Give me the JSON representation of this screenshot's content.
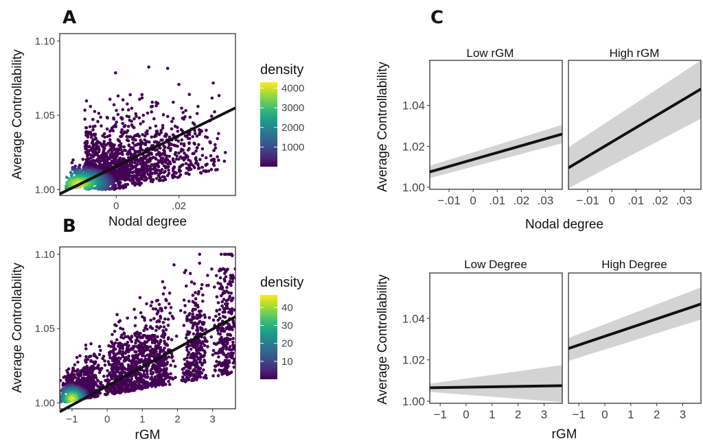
{
  "panels": {
    "a": "A",
    "b": "B",
    "c": "C"
  },
  "colors": {
    "viridis": [
      "#440154",
      "#482878",
      "#3e4989",
      "#31688e",
      "#26828e",
      "#1f9e89",
      "#35b779",
      "#6ece58",
      "#b5de2b",
      "#fde725"
    ],
    "point_low": "#46146d",
    "fit_line": "#111111",
    "ribbon": "#d3d3d3"
  },
  "chart_data": [
    {
      "id": "A",
      "type": "scatter",
      "xlabel": "Nodal degree",
      "ylabel": "Average Controllability",
      "x_ticks": [
        {
          "value": 0,
          "label": "0"
        },
        {
          "value": 0.02,
          "label": ".02"
        }
      ],
      "y_ticks": [
        {
          "value": 1.0,
          "label": "1.00"
        },
        {
          "value": 1.05,
          "label": "1.05"
        },
        {
          "value": 1.1,
          "label": "1.10"
        }
      ],
      "xlim": [
        -0.018,
        0.038
      ],
      "ylim": [
        0.996,
        1.105
      ],
      "fit_line": {
        "x": [
          -0.018,
          0.038
        ],
        "y": [
          0.997,
          1.055
        ]
      },
      "legend": {
        "title": "density",
        "ticks": [
          "4000",
          "3000",
          "2000",
          "1000"
        ],
        "min": 0,
        "max": 4300
      },
      "grid": false
    },
    {
      "id": "B",
      "type": "scatter",
      "xlabel": "rGM",
      "ylabel": "Average Controllability",
      "x_ticks": [
        {
          "value": -1,
          "label": "−1"
        },
        {
          "value": 0,
          "label": "0"
        },
        {
          "value": 1,
          "label": "1"
        },
        {
          "value": 2,
          "label": "2"
        },
        {
          "value": 3,
          "label": "3"
        }
      ],
      "y_ticks": [
        {
          "value": 1.0,
          "label": "1.00"
        },
        {
          "value": 1.05,
          "label": "1.05"
        },
        {
          "value": 1.1,
          "label": "1.10"
        }
      ],
      "xlim": [
        -1.35,
        3.65
      ],
      "ylim": [
        0.996,
        1.105
      ],
      "fit_line": {
        "x": [
          -1.35,
          3.65
        ],
        "y": [
          0.994,
          1.058
        ]
      },
      "legend": {
        "title": "density",
        "ticks": [
          "40",
          "30",
          "20",
          "10"
        ],
        "min": 0,
        "max": 47
      },
      "grid": false
    },
    {
      "id": "C-top",
      "type": "line",
      "xlabel": "Nodal degree",
      "ylabel": "Average Controllability",
      "y_ticks": [
        {
          "value": 1.0,
          "label": "1.00"
        },
        {
          "value": 1.02,
          "label": "1.02"
        },
        {
          "value": 1.04,
          "label": "1.04"
        }
      ],
      "x_ticks": [
        {
          "value": -0.01,
          "label": "−.01"
        },
        {
          "value": 0,
          "label": "0"
        },
        {
          "value": 0.01,
          "label": ".01"
        },
        {
          "value": 0.02,
          "label": ".02"
        },
        {
          "value": 0.03,
          "label": ".03"
        }
      ],
      "xlim": [
        -0.018,
        0.037
      ],
      "ylim": [
        0.999,
        1.062
      ],
      "facets": [
        {
          "label": "Low rGM",
          "fit": {
            "x": [
              -0.018,
              0.037
            ],
            "y": [
              1.0075,
              1.026
            ]
          },
          "ribbon": {
            "upper": [
              1.0105,
              1.0305
            ],
            "lower": [
              1.0045,
              1.0215
            ]
          }
        },
        {
          "label": "High rGM",
          "fit": {
            "x": [
              -0.018,
              0.037
            ],
            "y": [
              1.0095,
              1.048
            ]
          },
          "ribbon": {
            "upper": [
              1.0195,
              1.062
            ],
            "lower": [
              0.9995,
              1.0335
            ]
          }
        }
      ]
    },
    {
      "id": "C-bottom",
      "type": "line",
      "xlabel": "rGM",
      "ylabel": "Average Controllability",
      "y_ticks": [
        {
          "value": 1.0,
          "label": "1.00"
        },
        {
          "value": 1.02,
          "label": "1.02"
        },
        {
          "value": 1.04,
          "label": "1.04"
        }
      ],
      "x_ticks": [
        {
          "value": -1,
          "label": "−1"
        },
        {
          "value": 0,
          "label": "0"
        },
        {
          "value": 1,
          "label": "1"
        },
        {
          "value": 2,
          "label": "2"
        },
        {
          "value": 3,
          "label": "3"
        }
      ],
      "xlim": [
        -1.4,
        3.7
      ],
      "ylim": [
        0.999,
        1.062
      ],
      "facets": [
        {
          "label": "Low Degree",
          "fit": {
            "x": [
              -1.4,
              3.7
            ],
            "y": [
              1.0065,
              1.0075
            ]
          },
          "ribbon": {
            "upper": [
              1.0085,
              1.0175
            ],
            "lower": [
              1.0045,
              0.9995
            ]
          }
        },
        {
          "label": "High Degree",
          "fit": {
            "x": [
              -1.4,
              3.7
            ],
            "y": [
              1.0255,
              1.047
            ]
          },
          "ribbon": {
            "upper": [
              1.0305,
              1.055
            ],
            "lower": [
              1.0195,
              1.0395
            ]
          }
        }
      ]
    }
  ]
}
